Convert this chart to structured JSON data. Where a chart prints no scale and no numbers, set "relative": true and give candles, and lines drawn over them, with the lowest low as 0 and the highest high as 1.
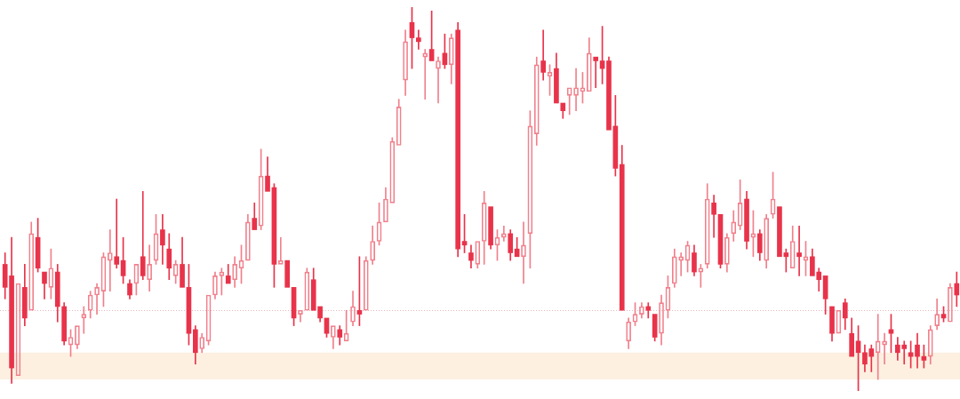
{
  "chart_data": {
    "type": "candlestick",
    "relative": true,
    "categories": [
      null,
      null,
      null,
      null,
      null,
      null,
      null,
      null,
      null,
      null,
      null,
      null,
      null,
      null,
      null,
      null,
      null,
      null,
      null,
      null,
      null,
      null,
      null,
      null,
      null,
      null,
      null,
      null,
      null,
      null,
      null,
      null,
      null,
      null,
      null,
      null,
      null,
      null,
      null,
      null,
      null,
      null,
      null,
      null,
      null,
      null,
      null,
      null,
      null,
      null,
      null,
      null,
      null,
      null,
      null,
      null,
      null,
      null,
      null,
      null,
      null,
      null,
      null,
      null,
      null,
      null,
      null,
      null,
      null,
      null,
      null,
      null,
      null,
      null,
      null,
      null,
      null,
      null,
      null,
      null,
      null,
      null,
      null,
      null,
      null,
      null,
      null,
      null,
      null,
      null,
      null,
      null,
      null,
      null,
      null,
      null,
      null,
      null,
      null,
      null,
      null,
      null,
      null,
      null,
      null,
      null,
      null,
      null,
      null,
      null,
      null,
      null,
      null,
      null,
      null,
      null,
      null,
      null,
      null,
      null,
      null,
      null,
      null,
      null,
      null,
      null,
      null,
      null,
      null,
      null,
      null,
      null,
      null,
      null,
      null,
      null,
      null,
      null,
      null,
      null,
      null,
      null,
      null,
      null,
      null,
      null
    ],
    "ohlc": [
      [
        0.33,
        0.36,
        0.24,
        0.27
      ],
      [
        0.3,
        0.4,
        0.02,
        0.06
      ],
      [
        0.04,
        0.28,
        0.04,
        0.28
      ],
      [
        0.27,
        0.33,
        0.17,
        0.19
      ],
      [
        0.21,
        0.44,
        0.21,
        0.41
      ],
      [
        0.4,
        0.45,
        0.31,
        0.32
      ],
      [
        0.31,
        0.31,
        0.24,
        0.28
      ],
      [
        0.27,
        0.37,
        0.24,
        0.32
      ],
      [
        0.31,
        0.33,
        0.18,
        0.22
      ],
      [
        0.22,
        0.23,
        0.12,
        0.13
      ],
      [
        0.12,
        0.16,
        0.09,
        0.14
      ],
      [
        0.12,
        0.17,
        0.11,
        0.17
      ],
      [
        0.19,
        0.22,
        0.15,
        0.2
      ],
      [
        0.21,
        0.26,
        0.19,
        0.25
      ],
      [
        0.25,
        0.28,
        0.2,
        0.27
      ],
      [
        0.26,
        0.36,
        0.22,
        0.35
      ],
      [
        0.34,
        0.42,
        0.26,
        0.36
      ],
      [
        0.35,
        0.5,
        0.32,
        0.33
      ],
      [
        0.34,
        0.4,
        0.28,
        0.3
      ],
      [
        0.28,
        0.29,
        0.24,
        0.25
      ],
      [
        0.28,
        0.33,
        0.25,
        0.33
      ],
      [
        0.35,
        0.52,
        0.29,
        0.3
      ],
      [
        0.29,
        0.38,
        0.26,
        0.33
      ],
      [
        0.34,
        0.46,
        0.33,
        0.41
      ],
      [
        0.42,
        0.46,
        0.33,
        0.38
      ],
      [
        0.37,
        0.41,
        0.29,
        0.32
      ],
      [
        0.3,
        0.34,
        0.28,
        0.33
      ],
      [
        0.33,
        0.4,
        0.27,
        0.27
      ],
      [
        0.27,
        0.33,
        0.12,
        0.15
      ],
      [
        0.16,
        0.17,
        0.07,
        0.1
      ],
      [
        0.11,
        0.15,
        0.1,
        0.14
      ],
      [
        0.13,
        0.25,
        0.12,
        0.25
      ],
      [
        0.25,
        0.31,
        0.24,
        0.3
      ],
      [
        0.3,
        0.32,
        0.25,
        0.31
      ],
      [
        0.3,
        0.33,
        0.28,
        0.28
      ],
      [
        0.29,
        0.35,
        0.27,
        0.33
      ],
      [
        0.32,
        0.38,
        0.28,
        0.34
      ],
      [
        0.34,
        0.46,
        0.34,
        0.44
      ],
      [
        0.45,
        0.49,
        0.42,
        0.42
      ],
      [
        0.43,
        0.63,
        0.42,
        0.56
      ],
      [
        0.56,
        0.61,
        0.52,
        0.52
      ],
      [
        0.53,
        0.54,
        0.27,
        0.33
      ],
      [
        0.33,
        0.4,
        0.33,
        0.34
      ],
      [
        0.34,
        0.34,
        0.27,
        0.27
      ],
      [
        0.27,
        0.27,
        0.17,
        0.19
      ],
      [
        0.2,
        0.21,
        0.18,
        0.21
      ],
      [
        0.21,
        0.32,
        0.21,
        0.31
      ],
      [
        0.29,
        0.32,
        0.21,
        0.21
      ],
      [
        0.22,
        0.22,
        0.18,
        0.19
      ],
      [
        0.19,
        0.19,
        0.14,
        0.15
      ],
      [
        0.14,
        0.17,
        0.11,
        0.17
      ],
      [
        0.16,
        0.17,
        0.12,
        0.14
      ],
      [
        0.13,
        0.21,
        0.13,
        0.15
      ],
      [
        0.18,
        0.26,
        0.17,
        0.22
      ],
      [
        0.21,
        0.35,
        0.17,
        0.2
      ],
      [
        0.21,
        0.35,
        0.21,
        0.34
      ],
      [
        0.34,
        0.43,
        0.33,
        0.39
      ],
      [
        0.39,
        0.49,
        0.38,
        0.44
      ],
      [
        0.44,
        0.53,
        0.44,
        0.5
      ],
      [
        0.49,
        0.66,
        0.49,
        0.65
      ],
      [
        0.64,
        0.76,
        0.64,
        0.74
      ],
      [
        0.81,
        0.94,
        0.77,
        0.91
      ],
      [
        0.96,
        1.0,
        0.84,
        0.92
      ],
      [
        0.92,
        0.94,
        0.89,
        0.91
      ],
      [
        0.87,
        0.89,
        0.76,
        0.88
      ],
      [
        0.89,
        0.99,
        0.86,
        0.86
      ],
      [
        0.84,
        0.87,
        0.75,
        0.86
      ],
      [
        0.88,
        0.93,
        0.84,
        0.85
      ],
      [
        0.85,
        0.93,
        0.8,
        0.92
      ],
      [
        0.94,
        0.96,
        0.35,
        0.37
      ],
      [
        0.39,
        0.46,
        0.36,
        0.38
      ],
      [
        0.36,
        0.38,
        0.32,
        0.34
      ],
      [
        0.33,
        0.39,
        0.32,
        0.39
      ],
      [
        0.39,
        0.52,
        0.33,
        0.49
      ],
      [
        0.48,
        0.48,
        0.37,
        0.38
      ],
      [
        0.38,
        0.42,
        0.34,
        0.4
      ],
      [
        0.4,
        0.43,
        0.39,
        0.41
      ],
      [
        0.41,
        0.42,
        0.34,
        0.36
      ],
      [
        0.37,
        0.4,
        0.35,
        0.35
      ],
      [
        0.35,
        0.44,
        0.28,
        0.38
      ],
      [
        0.41,
        0.73,
        0.32,
        0.69
      ],
      [
        0.67,
        0.87,
        0.64,
        0.85
      ],
      [
        0.86,
        0.94,
        0.81,
        0.83
      ],
      [
        0.82,
        0.85,
        0.77,
        0.83
      ],
      [
        0.84,
        0.88,
        0.75,
        0.75
      ],
      [
        0.75,
        0.75,
        0.71,
        0.73
      ],
      [
        0.77,
        0.79,
        0.72,
        0.79
      ],
      [
        0.77,
        0.84,
        0.73,
        0.79
      ],
      [
        0.78,
        0.83,
        0.75,
        0.79
      ],
      [
        0.78,
        0.92,
        0.78,
        0.88
      ],
      [
        0.87,
        0.87,
        0.79,
        0.86
      ],
      [
        0.86,
        0.95,
        0.8,
        0.84
      ],
      [
        0.86,
        0.87,
        0.68,
        0.68
      ],
      [
        0.69,
        0.77,
        0.56,
        0.58
      ],
      [
        0.59,
        0.64,
        0.21,
        0.21
      ],
      [
        0.13,
        0.19,
        0.11,
        0.18
      ],
      [
        0.18,
        0.23,
        0.17,
        0.2
      ],
      [
        0.2,
        0.23,
        0.19,
        0.22
      ],
      [
        0.22,
        0.23,
        0.19,
        0.21
      ],
      [
        0.2,
        0.2,
        0.13,
        0.14
      ],
      [
        0.15,
        0.25,
        0.12,
        0.23
      ],
      [
        0.21,
        0.3,
        0.19,
        0.27
      ],
      [
        0.28,
        0.37,
        0.27,
        0.35
      ],
      [
        0.34,
        0.36,
        0.3,
        0.35
      ],
      [
        0.34,
        0.39,
        0.31,
        0.38
      ],
      [
        0.36,
        0.38,
        0.3,
        0.31
      ],
      [
        0.31,
        0.33,
        0.27,
        0.32
      ],
      [
        0.33,
        0.54,
        0.32,
        0.5
      ],
      [
        0.49,
        0.51,
        0.4,
        0.46
      ],
      [
        0.46,
        0.46,
        0.32,
        0.33
      ],
      [
        0.33,
        0.41,
        0.31,
        0.4
      ],
      [
        0.41,
        0.47,
        0.39,
        0.44
      ],
      [
        0.43,
        0.55,
        0.42,
        0.49
      ],
      [
        0.5,
        0.52,
        0.37,
        0.39
      ],
      [
        0.4,
        0.47,
        0.35,
        0.41
      ],
      [
        0.41,
        0.42,
        0.34,
        0.36
      ],
      [
        0.34,
        0.46,
        0.32,
        0.45
      ],
      [
        0.46,
        0.57,
        0.45,
        0.5
      ],
      [
        0.48,
        0.48,
        0.35,
        0.35
      ],
      [
        0.36,
        0.37,
        0.31,
        0.35
      ],
      [
        0.32,
        0.43,
        0.32,
        0.39
      ],
      [
        0.36,
        0.43,
        0.3,
        0.35
      ],
      [
        0.34,
        0.39,
        0.3,
        0.35
      ],
      [
        0.35,
        0.37,
        0.3,
        0.3
      ],
      [
        0.31,
        0.32,
        0.26,
        0.29
      ],
      [
        0.3,
        0.3,
        0.2,
        0.24
      ],
      [
        0.22,
        0.22,
        0.13,
        0.15
      ],
      [
        0.15,
        0.21,
        0.15,
        0.21
      ],
      [
        0.23,
        0.24,
        0.16,
        0.19
      ],
      [
        0.15,
        0.19,
        0.09,
        0.09
      ],
      [
        0.13,
        0.17,
        0.0,
        0.1
      ],
      [
        0.1,
        0.12,
        0.05,
        0.07
      ],
      [
        0.11,
        0.12,
        0.05,
        0.09
      ],
      [
        0.1,
        0.2,
        0.03,
        0.13
      ],
      [
        0.12,
        0.15,
        0.07,
        0.13
      ],
      [
        0.16,
        0.2,
        0.1,
        0.15
      ],
      [
        0.12,
        0.14,
        0.08,
        0.1
      ],
      [
        0.12,
        0.13,
        0.07,
        0.11
      ],
      [
        0.1,
        0.13,
        0.06,
        0.09
      ],
      [
        0.12,
        0.15,
        0.06,
        0.09
      ],
      [
        0.09,
        0.12,
        0.06,
        0.08
      ],
      [
        0.09,
        0.17,
        0.07,
        0.16
      ],
      [
        0.17,
        0.24,
        0.16,
        0.2
      ],
      [
        0.2,
        0.22,
        0.18,
        0.19
      ],
      [
        0.18,
        0.28,
        0.18,
        0.27
      ],
      [
        0.28,
        0.31,
        0.22,
        0.25
      ]
    ],
    "colors": [
      "#e8334a",
      "#e8334a",
      "#f0808c",
      "#e8334a",
      "#f0808c",
      "#e8334a",
      "#e8334a",
      "#f0808c",
      "#e8334a",
      "#e8334a",
      "#f0808c",
      "#f0808c",
      "#f0808c",
      "#f0808c",
      "#f0808c",
      "#f0808c",
      "#f0808c",
      "#e8334a",
      "#e8334a",
      "#e8334a",
      "#f0808c",
      "#e8334a",
      "#f0808c",
      "#f0808c",
      "#e8334a",
      "#e8334a",
      "#f0808c",
      "#e8334a",
      "#e8334a",
      "#e8334a",
      "#f0808c",
      "#f0808c",
      "#f0808c",
      "#f0808c",
      "#e8334a",
      "#f0808c",
      "#f0808c",
      "#f0808c",
      "#e8334a",
      "#f0808c",
      "#e8334a",
      "#e8334a",
      "#f0808c",
      "#e8334a",
      "#e8334a",
      "#f0808c",
      "#f0808c",
      "#e8334a",
      "#e8334a",
      "#e8334a",
      "#f0808c",
      "#e8334a",
      "#f0808c",
      "#f0808c",
      "#e8334a",
      "#f0808c",
      "#f0808c",
      "#f0808c",
      "#f0808c",
      "#f0808c",
      "#f0808c",
      "#f0808c",
      "#e8334a",
      "#e8334a",
      "#f0808c",
      "#e8334a",
      "#f0808c",
      "#e8334a",
      "#f0808c",
      "#e8334a",
      "#e8334a",
      "#e8334a",
      "#f0808c",
      "#f0808c",
      "#e8334a",
      "#f0808c",
      "#f0808c",
      "#e8334a",
      "#e8334a",
      "#f0808c",
      "#f0808c",
      "#f0808c",
      "#e8334a",
      "#f0808c",
      "#e8334a",
      "#e8334a",
      "#f0808c",
      "#f0808c",
      "#f0808c",
      "#f0808c",
      "#e8334a",
      "#e8334a",
      "#e8334a",
      "#e8334a",
      "#e8334a",
      "#f0808c",
      "#f0808c",
      "#f0808c",
      "#e8334a",
      "#e8334a",
      "#f0808c",
      "#f0808c",
      "#f0808c",
      "#f0808c",
      "#f0808c",
      "#e8334a",
      "#f0808c",
      "#f0808c",
      "#e8334a",
      "#e8334a",
      "#f0808c",
      "#f0808c",
      "#f0808c",
      "#e8334a",
      "#f0808c",
      "#e8334a",
      "#f0808c",
      "#f0808c",
      "#e8334a",
      "#e8334a",
      "#f0808c",
      "#e8334a",
      "#f0808c",
      "#e8334a",
      "#e8334a",
      "#e8334a",
      "#e8334a",
      "#f0808c",
      "#e8334a",
      "#e8334a",
      "#e8334a",
      "#e8334a",
      "#e8334a",
      "#f0808c",
      "#f0808c",
      "#e8334a",
      "#e8334a",
      "#e8334a",
      "#e8334a",
      "#e8334a",
      "#e8334a",
      "#f0808c",
      "#f0808c",
      "#e8334a",
      "#f0808c",
      "#e8334a"
    ],
    "ref_lines": [
      {
        "axis": "y",
        "value": 0.21,
        "color": "#e9b8bd",
        "line_style": "dotted"
      }
    ],
    "bands": [
      {
        "axis": "y",
        "from": 0.03,
        "to": 0.1,
        "color": "#fdf0e1"
      }
    ]
  }
}
